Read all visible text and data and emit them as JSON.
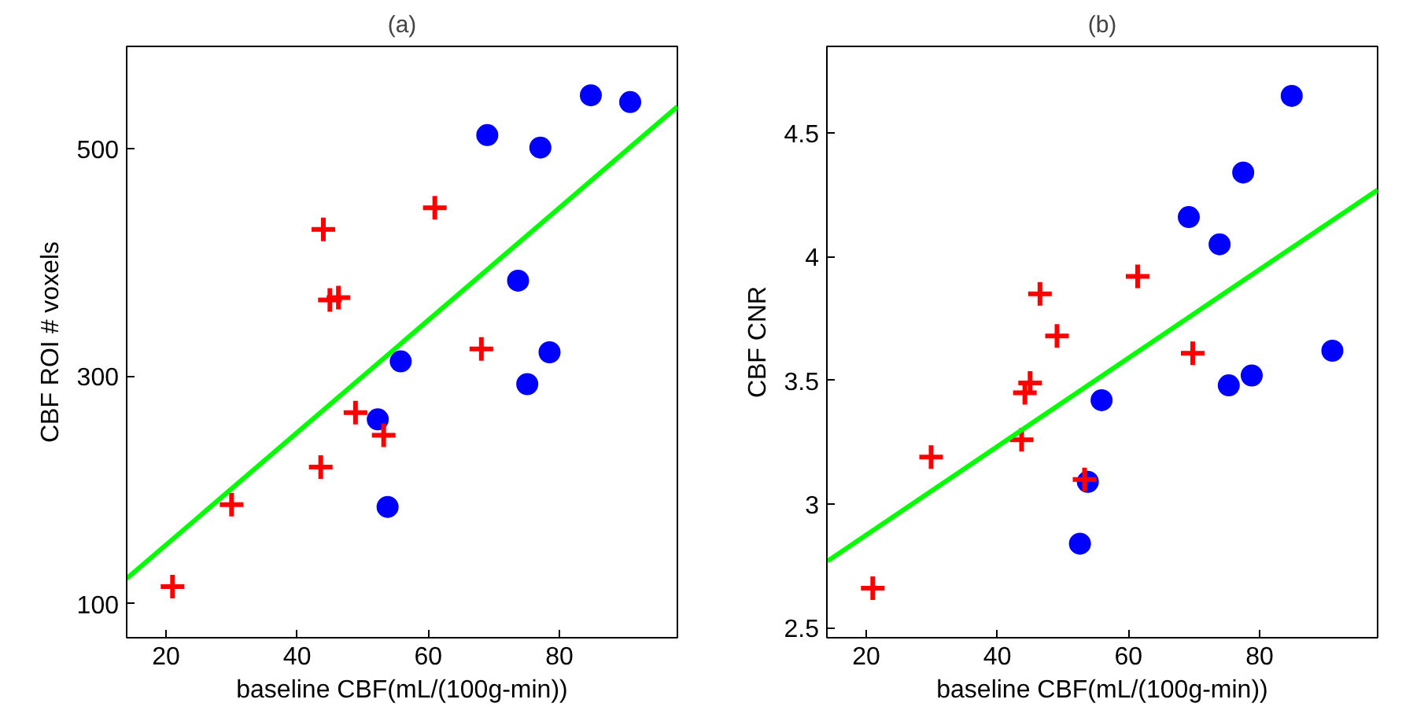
{
  "chart_data": [
    {
      "type": "scatter",
      "title": "(a)",
      "xlabel": "baseline CBF(mL/(100g-min))",
      "ylabel": "CBF ROI # voxels",
      "xlim": [
        14,
        98
      ],
      "ylim": [
        70,
        590
      ],
      "xticks": [
        20,
        40,
        60,
        80
      ],
      "yticks": [
        100,
        300,
        500
      ],
      "grid": false,
      "series": [
        {
          "marker": "circle",
          "color": "#0000ff",
          "x": [
            69,
            77.1,
            84.8,
            90.8,
            73.7,
            78.5,
            75.1,
            55.8,
            52.3,
            53.8
          ],
          "values": [
            512,
            501,
            547,
            541,
            384,
            321,
            293,
            313,
            262,
            185
          ]
        },
        {
          "marker": "cross",
          "color": "#ff0000",
          "x": [
            21,
            30,
            44,
            61,
            45,
            46.3,
            48.9,
            53.2,
            43.6,
            68.1
          ],
          "values": [
            115,
            187,
            429,
            448,
            367,
            369,
            268,
            248,
            220,
            324
          ]
        },
        {
          "type": "line",
          "marker": "none",
          "color": "#00ff00",
          "x": [
            14,
            98
          ],
          "values": [
            122,
            537
          ]
        }
      ]
    },
    {
      "type": "scatter",
      "title": "(b)",
      "xlabel": "baseline CBF(mL/(100g-min))",
      "ylabel": "CBF CNR",
      "xlim": [
        14,
        98
      ],
      "ylim": [
        2.46,
        4.85
      ],
      "xticks": [
        20,
        40,
        60,
        80
      ],
      "yticks": [
        2.5,
        3,
        3.5,
        4,
        4.5
      ],
      "grid": false,
      "series": [
        {
          "marker": "circle",
          "color": "#0000ff",
          "x": [
            84.9,
            77.5,
            69.2,
            73.9,
            91.1,
            75.3,
            78.8,
            55.9,
            53.8,
            52.6
          ],
          "values": [
            4.65,
            4.34,
            4.16,
            4.05,
            3.62,
            3.48,
            3.52,
            3.42,
            3.09,
            2.84
          ]
        },
        {
          "marker": "cross",
          "color": "#ff0000",
          "x": [
            21,
            29.9,
            46.5,
            49.1,
            61.4,
            69.8,
            45,
            44.2,
            43.7,
            53.3
          ],
          "values": [
            2.66,
            3.19,
            3.85,
            3.68,
            3.92,
            3.61,
            3.49,
            3.45,
            3.26,
            3.1
          ]
        },
        {
          "type": "line",
          "marker": "none",
          "color": "#00ff00",
          "x": [
            14.1,
            98
          ],
          "values": [
            2.77,
            4.27
          ]
        }
      ]
    }
  ]
}
